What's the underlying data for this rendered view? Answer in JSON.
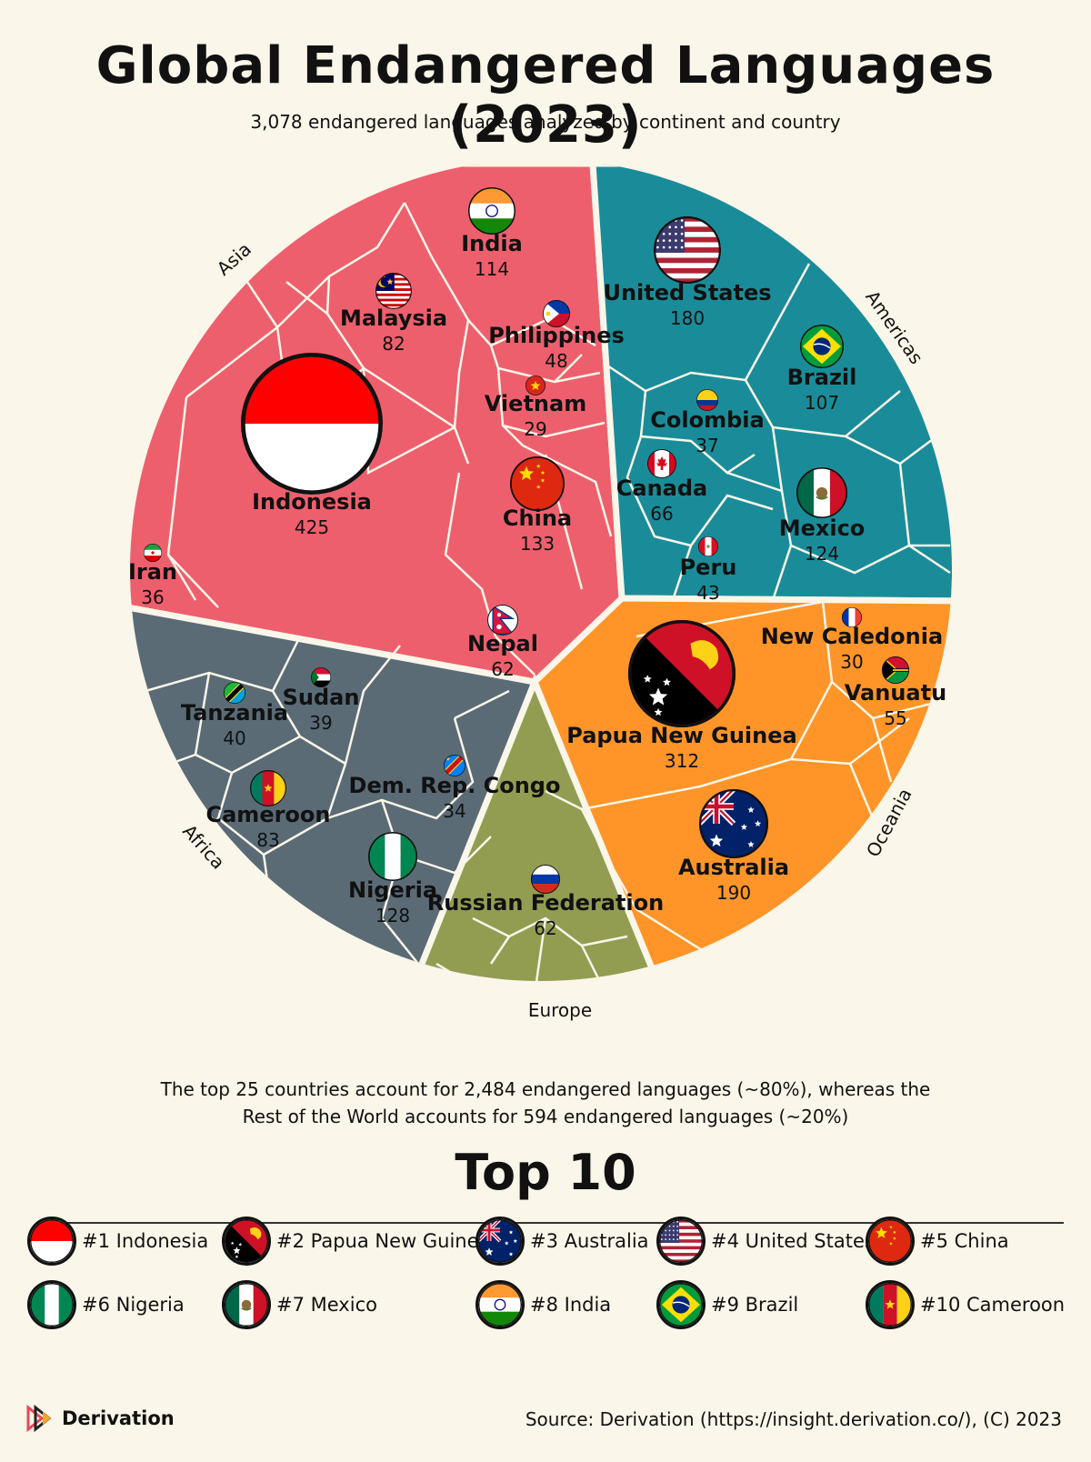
{
  "title": "Global Endangered Languages (2023)",
  "subtitle": "3,078 endangered languages analyzed by continent and country",
  "summary_line1": "The top 25 countries account for 2,484 endangered languages (~80%), whereas the",
  "summary_line2": "Rest of the World accounts for 594 endangered languages (~20%)",
  "top10_title": "Top 10",
  "top10": [
    {
      "rank": "#1",
      "name": "Indonesia",
      "flag": "indonesia"
    },
    {
      "rank": "#2",
      "name": "Papua New Guinea",
      "flag": "papua-new-guinea"
    },
    {
      "rank": "#3",
      "name": "Australia",
      "flag": "australia"
    },
    {
      "rank": "#4",
      "name": "United States",
      "flag": "united-states"
    },
    {
      "rank": "#5",
      "name": "China",
      "flag": "china"
    },
    {
      "rank": "#6",
      "name": "Nigeria",
      "flag": "nigeria"
    },
    {
      "rank": "#7",
      "name": "Mexico",
      "flag": "mexico"
    },
    {
      "rank": "#8",
      "name": "India",
      "flag": "india"
    },
    {
      "rank": "#9",
      "name": "Brazil",
      "flag": "brazil"
    },
    {
      "rank": "#10",
      "name": "Cameroon",
      "flag": "cameroon"
    }
  ],
  "brand": "Derivation",
  "source": "Source: Derivation (https://insight.derivation.co/), (C) 2023",
  "chart_data": {
    "type": "voronoi-treemap",
    "total": 3078,
    "continents": [
      {
        "name": "Asia",
        "color": "#ee5f6d"
      },
      {
        "name": "Americas",
        "color": "#1a8c99"
      },
      {
        "name": "Oceania",
        "color": "#ff9528"
      },
      {
        "name": "Europe",
        "color": "#929d52"
      },
      {
        "name": "Africa",
        "color": "#5a6b76"
      }
    ],
    "countries": [
      {
        "name": "Indonesia",
        "value": 425,
        "continent": "Asia"
      },
      {
        "name": "India",
        "value": 114,
        "continent": "Asia"
      },
      {
        "name": "Malaysia",
        "value": 82,
        "continent": "Asia"
      },
      {
        "name": "Philippines",
        "value": 48,
        "continent": "Asia"
      },
      {
        "name": "Vietnam",
        "value": 29,
        "continent": "Asia"
      },
      {
        "name": "China",
        "value": 133,
        "continent": "Asia"
      },
      {
        "name": "Iran",
        "value": 36,
        "continent": "Asia"
      },
      {
        "name": "Nepal",
        "value": 62,
        "continent": "Asia"
      },
      {
        "name": "United States",
        "value": 180,
        "continent": "Americas"
      },
      {
        "name": "Brazil",
        "value": 107,
        "continent": "Americas"
      },
      {
        "name": "Colombia",
        "value": 37,
        "continent": "Americas"
      },
      {
        "name": "Canada",
        "value": 66,
        "continent": "Americas"
      },
      {
        "name": "Mexico",
        "value": 124,
        "continent": "Americas"
      },
      {
        "name": "Peru",
        "value": 43,
        "continent": "Americas"
      },
      {
        "name": "Papua New Guinea",
        "value": 312,
        "continent": "Oceania"
      },
      {
        "name": "New Caledonia",
        "value": 30,
        "continent": "Oceania"
      },
      {
        "name": "Vanuatu",
        "value": 55,
        "continent": "Oceania"
      },
      {
        "name": "Australia",
        "value": 190,
        "continent": "Oceania"
      },
      {
        "name": "Russian Federation",
        "value": 62,
        "continent": "Europe"
      },
      {
        "name": "Tanzania",
        "value": 40,
        "continent": "Africa"
      },
      {
        "name": "Sudan",
        "value": 39,
        "continent": "Africa"
      },
      {
        "name": "Cameroon",
        "value": 83,
        "continent": "Africa"
      },
      {
        "name": "Dem. Rep. Congo",
        "value": 34,
        "continent": "Africa"
      },
      {
        "name": "Nigeria",
        "value": 128,
        "continent": "Africa"
      }
    ]
  }
}
